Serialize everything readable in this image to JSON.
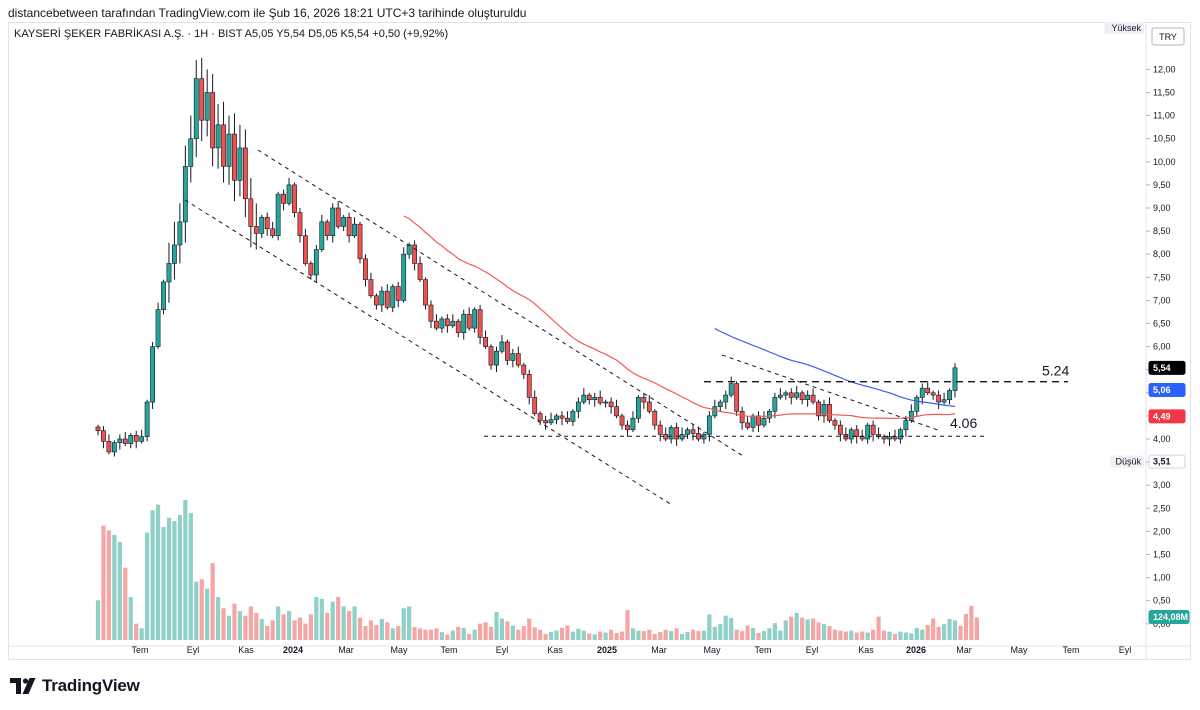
{
  "page": {
    "caption": "distancebetween tarafından TradingView.com ile Şub 16, 2026 18:21 UTC+3 tarihinde oluşturuldu",
    "logo_text": "TradingView",
    "logo_icon": "tradingview-logo-icon"
  },
  "chart_data": {
    "type": "candlestick",
    "legend": "KAYSERİ ŞEKER FABRİKASI A.Ş. · 1H · BIST  A5,05  Y5,54  D5,05  K5,54  +0,50 (+9,92%)",
    "currency": "TRY",
    "yaxis": {
      "ticks": [
        "12,00",
        "11,50",
        "11,00",
        "10,50",
        "10,00",
        "9,50",
        "9,00",
        "8,50",
        "8,00",
        "7,50",
        "7,00",
        "6,50",
        "6,00",
        "5,50",
        "5,00",
        "4,50",
        "4,00",
        "3,50",
        "3,00",
        "2,50",
        "2,00",
        "1,50",
        "1,00",
        "0,50",
        "0,00"
      ],
      "ylim": [
        0,
        12.1
      ]
    },
    "xaxis": {
      "labels": [
        "Tem",
        "Eyl",
        "Kas",
        "2024",
        "Mar",
        "May",
        "Tem",
        "Eyl",
        "Kas",
        "2025",
        "Mar",
        "May",
        "Tem",
        "Eyl",
        "Kas",
        "2026",
        "Mar",
        "May",
        "Tem",
        "Eyl"
      ],
      "bold": [
        "2024",
        "2025",
        "2026"
      ]
    },
    "price_badges": [
      {
        "label": "5,54",
        "value": 5.54,
        "bg": "#000000",
        "fg": "#ffffff"
      },
      {
        "label": "5,06",
        "value": 5.06,
        "bg": "#2962ff",
        "fg": "#ffffff"
      },
      {
        "label": "4,49",
        "value": 4.49,
        "bg": "#f23645",
        "fg": "#ffffff"
      },
      {
        "label": "3,51",
        "value": 3.51,
        "bg": "#ffffff",
        "fg": "#131722"
      },
      {
        "label": "124,08M",
        "value": 0.12,
        "bg": "#26a69a",
        "fg": "#ffffff"
      }
    ],
    "side_labels": [
      {
        "label": "Yüksek",
        "value": 12.32
      },
      {
        "label": "Düşük",
        "value": 3.51
      }
    ],
    "annotations": [
      {
        "label": "5.24",
        "value": 5.24
      },
      {
        "label": "4.06",
        "value": 4.06
      }
    ],
    "colors": {
      "up": "#26a69a",
      "down": "#ef5350",
      "vol_up": "#8fd0c8",
      "vol_down": "#f4a6a5",
      "ma_red": "#f05a5a",
      "ma_blue": "#3c5fe6"
    },
    "closes": [
      4.18,
      3.95,
      3.72,
      3.92,
      4.0,
      3.9,
      4.08,
      3.95,
      4.05,
      4.8,
      6.0,
      6.8,
      7.4,
      7.8,
      8.2,
      8.7,
      9.9,
      10.5,
      11.8,
      10.9,
      11.5,
      10.3,
      10.8,
      9.9,
      10.6,
      9.6,
      10.3,
      9.2,
      8.6,
      8.45,
      8.8,
      8.55,
      8.4,
      9.3,
      9.1,
      9.5,
      8.9,
      8.4,
      7.8,
      7.55,
      8.1,
      8.7,
      8.4,
      9.0,
      8.6,
      8.8,
      8.4,
      8.65,
      7.9,
      7.45,
      7.1,
      6.9,
      7.2,
      6.85,
      7.3,
      7.0,
      8.0,
      8.2,
      7.8,
      7.45,
      6.9,
      6.55,
      6.4,
      6.6,
      6.45,
      6.55,
      6.3,
      6.7,
      6.4,
      6.8,
      6.2,
      6.0,
      5.6,
      5.9,
      6.1,
      5.7,
      5.85,
      5.6,
      5.4,
      4.9,
      4.55,
      4.4,
      4.35,
      4.42,
      4.5,
      4.45,
      4.38,
      4.6,
      4.8,
      4.95,
      4.85,
      4.9,
      4.78,
      4.8,
      4.7,
      4.5,
      4.3,
      4.2,
      4.45,
      4.9,
      4.8,
      4.6,
      4.3,
      4.1,
      4.0,
      4.25,
      4.0,
      4.1,
      4.2,
      4.12,
      4.0,
      4.1,
      4.5,
      4.7,
      4.8,
      4.95,
      5.2,
      4.6,
      4.35,
      4.25,
      4.5,
      4.3,
      4.45,
      4.6,
      4.9,
      4.95,
      5.0,
      4.9,
      5.0,
      4.85,
      4.95,
      4.8,
      4.5,
      4.75,
      4.4,
      4.3,
      4.1,
      4.0,
      4.2,
      4.05,
      4.0,
      4.3,
      4.1,
      4.05,
      4.0,
      4.05,
      4.0,
      4.2,
      4.4,
      4.6,
      4.9,
      5.1,
      5.0,
      4.95,
      4.8,
      4.85,
      5.05,
      5.54
    ],
    "volumes": [
      0.85,
      2.45,
      2.35,
      2.25,
      2.1,
      1.55,
      0.92,
      0.35,
      0.25,
      2.3,
      2.78,
      2.9,
      2.42,
      2.62,
      2.55,
      2.68,
      3.0,
      2.72,
      1.25,
      1.3,
      1.1,
      1.65,
      0.92,
      0.68,
      0.52,
      0.78,
      0.62,
      0.52,
      0.72,
      0.58,
      0.45,
      0.3,
      0.42,
      0.72,
      0.55,
      0.62,
      0.42,
      0.48,
      0.35,
      0.55,
      0.92,
      0.88,
      0.58,
      0.82,
      0.92,
      0.72,
      0.62,
      0.72,
      0.48,
      0.3,
      0.42,
      0.32,
      0.45,
      0.38,
      0.25,
      0.3,
      0.68,
      0.72,
      0.28,
      0.25,
      0.22,
      0.22,
      0.25,
      0.17,
      0.12,
      0.2,
      0.28,
      0.26,
      0.13,
      0.22,
      0.35,
      0.38,
      0.28,
      0.6,
      0.46,
      0.4,
      0.31,
      0.22,
      0.3,
      0.46,
      0.27,
      0.22,
      0.13,
      0.17,
      0.2,
      0.26,
      0.31,
      0.18,
      0.24,
      0.2,
      0.14,
      0.12,
      0.18,
      0.16,
      0.22,
      0.15,
      0.18,
      0.64,
      0.25,
      0.2,
      0.19,
      0.22,
      0.13,
      0.17,
      0.22,
      0.19,
      0.25,
      0.13,
      0.17,
      0.22,
      0.19,
      0.2,
      0.55,
      0.28,
      0.34,
      0.52,
      0.47,
      0.22,
      0.19,
      0.31,
      0.26,
      0.15,
      0.19,
      0.25,
      0.36,
      0.2,
      0.42,
      0.5,
      0.58,
      0.48,
      0.44,
      0.46,
      0.38,
      0.34,
      0.3,
      0.22,
      0.2,
      0.18,
      0.2,
      0.16,
      0.18,
      0.16,
      0.22,
      0.5,
      0.2,
      0.18,
      0.13,
      0.18,
      0.16,
      0.14,
      0.26,
      0.22,
      0.32,
      0.46,
      0.28,
      0.34,
      0.45,
      0.42,
      0.3,
      0.56,
      0.73,
      0.48
    ]
  }
}
